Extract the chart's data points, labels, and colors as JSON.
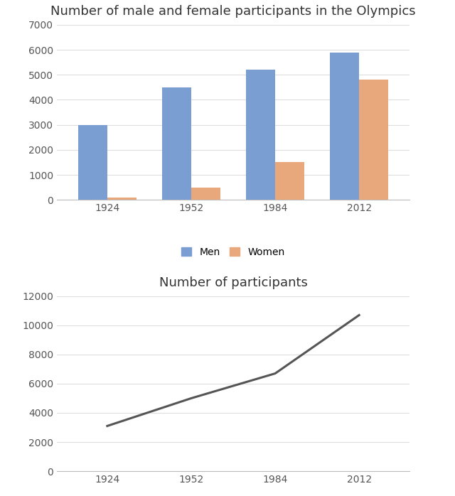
{
  "years": [
    "1924",
    "1952",
    "1984",
    "2012"
  ],
  "men": [
    3000,
    4500,
    5200,
    5900
  ],
  "women": [
    100,
    500,
    1500,
    4800
  ],
  "total": [
    3100,
    5000,
    6700,
    10700
  ],
  "bar_title": "Number of male and female participants in the Olympics",
  "line_title": "Number of participants",
  "men_color": "#7A9DD2",
  "women_color": "#E8A87C",
  "line_color": "#555555",
  "bar_ylim": [
    0,
    7000
  ],
  "bar_yticks": [
    0,
    1000,
    2000,
    3000,
    4000,
    5000,
    6000,
    7000
  ],
  "line_ylim": [
    0,
    12000
  ],
  "line_yticks": [
    0,
    2000,
    4000,
    6000,
    8000,
    10000,
    12000
  ],
  "legend_labels": [
    "Men",
    "Women"
  ],
  "background_color": "#ffffff",
  "title_fontsize": 13,
  "tick_fontsize": 10,
  "grid_color": "#dddddd"
}
